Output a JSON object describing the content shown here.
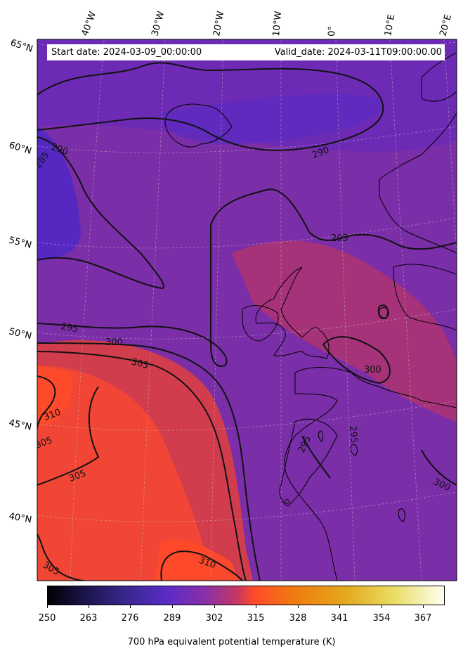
{
  "header": {
    "start_date": "Start date: 2024-03-09_00:00:00",
    "valid_date": "Valid_date: 2024-03-11T09:00:00.00"
  },
  "map": {
    "longitude_labels": [
      "40°W",
      "30°W",
      "20°W",
      "10°W",
      "0°",
      "10°E",
      "20°E"
    ],
    "latitude_labels": [
      "65°N",
      "60°N",
      "55°N",
      "50°N",
      "45°N",
      "40°N"
    ],
    "contour_labels": [
      "290",
      "290",
      "285",
      "295",
      "295",
      "300",
      "300",
      "305",
      "310",
      "305",
      "305",
      "310",
      "305",
      "300",
      "295",
      "295",
      "300"
    ]
  },
  "colorbar": {
    "title": "700 hPa equivalent potential temperature (K)",
    "ticks": [
      "250",
      "263",
      "276",
      "289",
      "302",
      "315",
      "328",
      "341",
      "354",
      "367"
    ],
    "range": [
      250,
      376
    ],
    "colors": [
      "#000004",
      "#1c1650",
      "#3a2790",
      "#5a2bc8",
      "#8a30a8",
      "#c83860",
      "#ff4a2a",
      "#f07a10",
      "#e8b020",
      "#e8dc60",
      "#ffffe8"
    ]
  }
}
